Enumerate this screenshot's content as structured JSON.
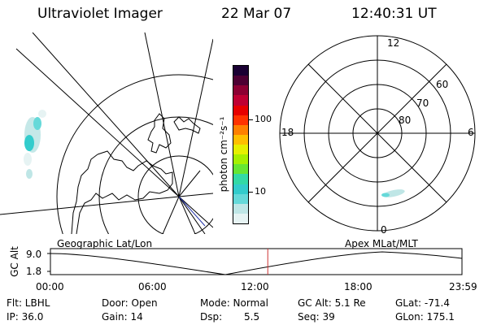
{
  "header": {
    "instrument": "Ultraviolet Imager",
    "date": "22 Mar 07",
    "time": "12:40:31 UT"
  },
  "geo_panel": {
    "label": "Geographic Lat/Lon"
  },
  "polar_panel": {
    "label": "Apex MLat/MLT",
    "mlt_labels": [
      "12",
      "18",
      "6",
      "0"
    ],
    "lat_labels": [
      "60",
      "70",
      "80"
    ]
  },
  "colorbar": {
    "unit_label": "photon cm⁻²s⁻¹",
    "ticks": [
      "100",
      "10"
    ],
    "colors": [
      "#e6f3f3",
      "#bfe6e6",
      "#66d9d9",
      "#33cccc",
      "#33d9a6",
      "#66e633",
      "#a6f000",
      "#e6f000",
      "#ffbf00",
      "#ff8000",
      "#ff3300",
      "#e60000",
      "#bf0033",
      "#8c0033",
      "#4d0033",
      "#1a0033"
    ],
    "scale": "log"
  },
  "orbit_plot": {
    "y_label": "GC Alt",
    "y_ticks": [
      "9.0",
      "1.8"
    ],
    "x_ticks": [
      "00:00",
      "06:00",
      "12:00",
      "18:00",
      "23:59"
    ],
    "marker_time": "12:40",
    "marker_color": "#cc3333"
  },
  "status": {
    "flt_label": "Flt: LBHL",
    "ip_label": "IP: 36.0",
    "door_label": "Door: Open",
    "gain_label": "Gain: 14",
    "mode_label": "Mode: Normal",
    "dsp_label": "Dsp:",
    "dsp_value": "5.5",
    "gcalt_label": "GC Alt: 5.1 Re",
    "seq_label": "Seq: 39",
    "glat_label": "GLat: -71.4",
    "glon_label": "GLon: 175.1"
  }
}
